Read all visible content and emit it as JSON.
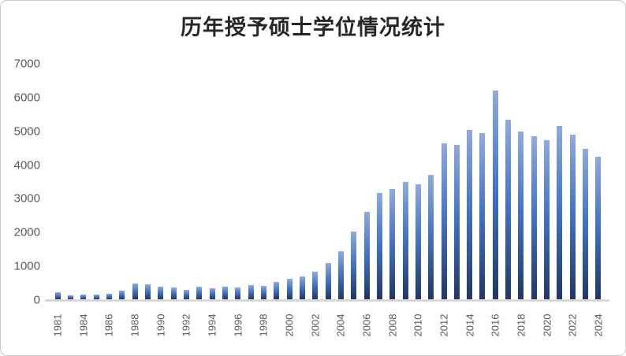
{
  "chart_data": {
    "type": "bar",
    "title": "历年授予硕士学位情况统计",
    "xlabel": "",
    "ylabel": "",
    "categories": [
      "1981",
      "1982",
      "1984",
      "1985",
      "1986",
      "1987",
      "1988",
      "1989",
      "1990",
      "1991",
      "1992",
      "1993",
      "1994",
      "1995",
      "1996",
      "1997",
      "1998",
      "1999",
      "2000",
      "2001",
      "2002",
      "2003",
      "2004",
      "2005",
      "2006",
      "2007",
      "2008",
      "2009",
      "2010",
      "2011",
      "2012",
      "2013",
      "2014",
      "2015",
      "2016",
      "2017",
      "2018",
      "2019",
      "2020",
      "2021",
      "2022",
      "2023",
      "2024"
    ],
    "values": [
      210,
      110,
      130,
      145,
      160,
      250,
      470,
      440,
      375,
      360,
      285,
      385,
      335,
      375,
      350,
      425,
      405,
      505,
      600,
      670,
      810,
      1070,
      1420,
      2020,
      2610,
      3170,
      3280,
      3480,
      3420,
      3700,
      4630,
      4600,
      5040,
      4950,
      6210,
      5340,
      4990,
      4845,
      4730,
      5140,
      4890,
      4480,
      4230
    ],
    "x_tick_interval": 2,
    "x_tick_labels_shown": [
      "1981",
      "1984",
      "1986",
      "1988",
      "1990",
      "1992",
      "1994",
      "1996",
      "1998",
      "2000",
      "2002",
      "2004",
      "2006",
      "2008",
      "2010",
      "2012",
      "2014",
      "2016",
      "2018",
      "2020",
      "2022",
      "2024"
    ],
    "y_ticks": [
      0,
      1000,
      2000,
      3000,
      4000,
      5000,
      6000,
      7000
    ],
    "ylim": [
      0,
      7000
    ],
    "grid": "off",
    "legend": "none",
    "bar_gradient": {
      "top": "#8faadc",
      "mid": "#4472c4",
      "bottom": "#1f3864"
    },
    "axis_line_color": "#d9d9d9",
    "tick_label_color": "#595959",
    "title_color": "#262626"
  }
}
